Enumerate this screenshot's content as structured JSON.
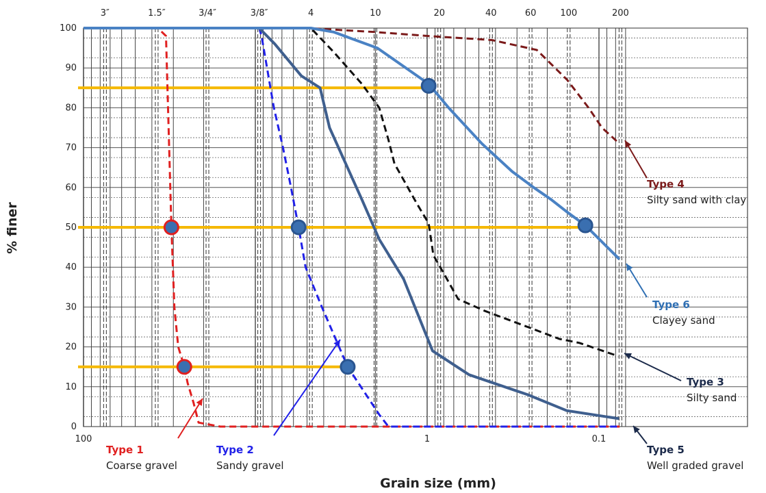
{
  "chart_data": {
    "type": "line",
    "xlabel": "Grain size (mm)",
    "ylabel": "% finer",
    "x_scale": "log",
    "x_reversed": true,
    "xlim": [
      100,
      0.063
    ],
    "ylim": [
      0,
      100
    ],
    "y_ticks": [
      0,
      10,
      20,
      30,
      40,
      50,
      60,
      70,
      80,
      90,
      100
    ],
    "x_tick_labels": [
      {
        "value": 100,
        "label": "100"
      },
      {
        "value": 1,
        "label": "1"
      },
      {
        "value": 0.1,
        "label": "0.1"
      }
    ],
    "sieve_labels": [
      {
        "value": 75,
        "label": "3″"
      },
      {
        "value": 37.5,
        "label": "1.5″"
      },
      {
        "value": 19,
        "label": "3/4″"
      },
      {
        "value": 9.5,
        "label": "3/8″"
      },
      {
        "value": 4.75,
        "label": "4"
      },
      {
        "value": 2,
        "label": "10"
      },
      {
        "value": 0.85,
        "label": "20"
      },
      {
        "value": 0.425,
        "label": "40"
      },
      {
        "value": 0.25,
        "label": "60"
      },
      {
        "value": 0.15,
        "label": "100"
      },
      {
        "value": 0.075,
        "label": "200"
      }
    ],
    "grid": true,
    "reference_lines": [
      {
        "y": 85,
        "x_from": 100,
        "x_to": 0.98,
        "color": "#f5b800"
      },
      {
        "y": 50,
        "x_from": 100,
        "x_to": 0.12,
        "color": "#f5b800"
      },
      {
        "y": 15,
        "x_from": 100,
        "x_to": 2.9,
        "color": "#f5b800"
      }
    ],
    "markers": [
      {
        "x": 30.8,
        "y": 50,
        "color": "#e02020"
      },
      {
        "x": 25.9,
        "y": 15,
        "color": "#e02020"
      },
      {
        "x": 5.6,
        "y": 50,
        "color": "#3a6fb0"
      },
      {
        "x": 2.9,
        "y": 15,
        "color": "#3a6fb0"
      },
      {
        "x": 0.98,
        "y": 85.5,
        "color": "#3a6fb0"
      },
      {
        "x": 0.12,
        "y": 50.5,
        "color": "#3a6fb0"
      }
    ],
    "series": [
      {
        "name": "Type 1",
        "description": "Coarse gravel",
        "color": "#e02020",
        "label_color": "#e02020",
        "style": "dashed",
        "x": [
          40,
          36.9,
          33.1,
          30.8,
          29.6,
          28.1,
          25.9,
          24.8,
          22.9,
          21.4,
          16,
          10,
          5,
          1.5,
          0.4,
          0.075
        ],
        "y": [
          100,
          100,
          98,
          50,
          30,
          20,
          15,
          11,
          6,
          1,
          0,
          0,
          0,
          0,
          0,
          0
        ]
      },
      {
        "name": "Type 2",
        "description": "Sandy gravel",
        "color": "#2121e8",
        "label_color": "#2121e8",
        "style": "dashed",
        "x": [
          100,
          20,
          9.5,
          9.2,
          7.8,
          6.9,
          6.2,
          5.6,
          5.1,
          4.1,
          2.9,
          1.9,
          1.68,
          1.0,
          0.4,
          0.075
        ],
        "y": [
          100,
          100,
          100,
          98,
          80,
          70,
          60,
          50,
          40,
          30,
          15,
          3,
          0,
          0,
          0,
          0
        ]
      },
      {
        "name": "Type 3",
        "description": "Silty sand",
        "color": "#111111",
        "label_color": "#1b2a4a",
        "style": "dashed",
        "x": [
          100,
          4.75,
          3.5,
          2.4,
          1.9,
          1.68,
          1.55,
          1.15,
          0.98,
          0.92,
          0.79,
          0.66,
          0.46,
          0.26,
          0.17,
          0.13,
          0.0813
        ],
        "y": [
          100,
          100,
          94,
          86,
          80,
          72,
          66,
          56,
          51,
          43,
          38,
          32,
          29,
          25,
          22,
          21,
          18
        ]
      },
      {
        "name": "Type 4",
        "description": "Silty sand with clay",
        "color": "#7b1a1a",
        "label_color": "#7b1a1a",
        "style": "dashed",
        "x": [
          100,
          5.0,
          2.0,
          0.98,
          0.42,
          0.23,
          0.153,
          0.115,
          0.096,
          0.076
        ],
        "y": [
          100,
          100,
          99,
          98,
          97,
          94.5,
          87,
          80,
          75,
          71
        ]
      },
      {
        "name": "Type 5",
        "description": "Well graded gravel",
        "color": "#3f5f8e",
        "label_color": "#1b2a4a",
        "style": "solid",
        "x": [
          100,
          9.5,
          7.7,
          5.4,
          4.2,
          3.7,
          2.4,
          1.9,
          1.37,
          0.93,
          0.57,
          0.26,
          0.154,
          0.0765
        ],
        "y": [
          100,
          100,
          96,
          88,
          85,
          75,
          57,
          47,
          37,
          19,
          13,
          8,
          4,
          2
        ]
      },
      {
        "name": "Type 6",
        "description": "Clayey sand",
        "color": "#4a82c4",
        "label_color": "#2f6fb3",
        "style": "solid",
        "x": [
          100,
          4.75,
          3.5,
          1.95,
          0.98,
          0.75,
          0.48,
          0.32,
          0.24,
          0.19,
          0.155,
          0.12,
          0.076
        ],
        "y": [
          100,
          100,
          99,
          95,
          86,
          80,
          71,
          64,
          60,
          57,
          54,
          50.5,
          42
        ]
      }
    ]
  }
}
